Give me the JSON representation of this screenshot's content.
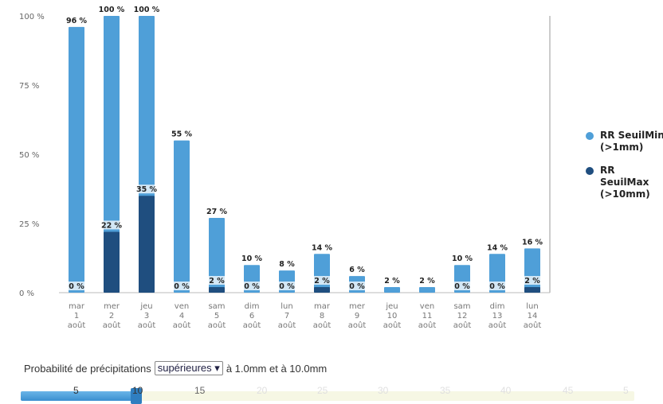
{
  "chart_data": {
    "type": "bar",
    "ylim": [
      0,
      100
    ],
    "yticks": [
      "0 %",
      "25 %",
      "50 %",
      "75 %",
      "100 %"
    ],
    "categories": [
      [
        "mar",
        "1",
        "août"
      ],
      [
        "mer",
        "2",
        "août"
      ],
      [
        "jeu",
        "3",
        "août"
      ],
      [
        "ven",
        "4",
        "août"
      ],
      [
        "sam",
        "5",
        "août"
      ],
      [
        "dim",
        "6",
        "août"
      ],
      [
        "lun",
        "7",
        "août"
      ],
      [
        "mar",
        "8",
        "août"
      ],
      [
        "mer",
        "9",
        "août"
      ],
      [
        "jeu",
        "10",
        "août"
      ],
      [
        "ven",
        "11",
        "août"
      ],
      [
        "sam",
        "12",
        "août"
      ],
      [
        "dim",
        "13",
        "août"
      ],
      [
        "lun",
        "14",
        "août"
      ]
    ],
    "series": [
      {
        "name": "RR SeuilMin (>1mm)",
        "color": "#4f9fd8",
        "values": [
          96,
          100,
          100,
          55,
          27,
          10,
          8,
          14,
          6,
          2,
          2,
          10,
          14,
          16
        ],
        "labels": [
          "96 %",
          "100 %",
          "100 %",
          "55 %",
          "27 %",
          "10 %",
          "8 %",
          "14 %",
          "6 %",
          "2 %",
          "2 %",
          "10 %",
          "14 %",
          "16 %"
        ]
      },
      {
        "name": "RR SeuilMax (>10mm)",
        "color": "#1f4e7f",
        "values": [
          0,
          22,
          35,
          0,
          2,
          0,
          0,
          2,
          0,
          null,
          null,
          0,
          0,
          2
        ],
        "labels": [
          "0 %",
          "22 %",
          "35 %",
          "0 %",
          "2 %",
          "0 %",
          "0 %",
          "2 %",
          "0 %",
          null,
          null,
          "0 %",
          "0 %",
          "2 %"
        ]
      }
    ],
    "legend_position": "right"
  },
  "legend": [
    {
      "label": "RR SeuilMin\n(>1mm)",
      "color": "#4f9fd8"
    },
    {
      "label": "RR SeuilMax\n(>10mm)",
      "color": "#1f4e7f"
    }
  ],
  "controls": {
    "prefix": "Probabilité de précipitations",
    "select_value": "supérieures",
    "suffix": "à 1.0mm et à 10.0mm"
  },
  "slider": {
    "labels": [
      "5",
      "10",
      "15",
      "20",
      "25",
      "30",
      "35",
      "40",
      "45",
      "5"
    ],
    "selected_value": "10"
  }
}
